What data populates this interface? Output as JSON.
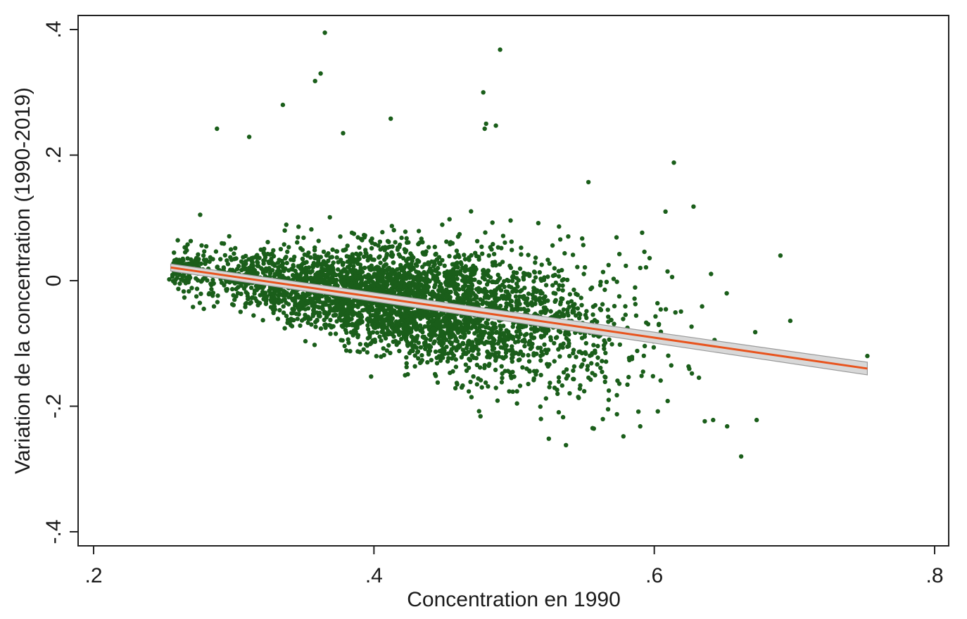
{
  "chart_data": {
    "type": "scatter",
    "xlabel": "Concentration en 1990",
    "ylabel": "Variation de la concentration (1990-2019)",
    "xlim": [
      0.2,
      0.8
    ],
    "ylim": [
      -0.4,
      0.4
    ],
    "x_ticks": [
      0.2,
      0.4,
      0.6,
      0.8
    ],
    "x_tick_labels": [
      ".2",
      ".4",
      ".6",
      ".8"
    ],
    "y_ticks": [
      -0.4,
      -0.2,
      0,
      0.2,
      0.4
    ],
    "y_tick_labels": [
      "-.4",
      "-.2",
      "0",
      ".2",
      ".4"
    ],
    "grid": false,
    "legend": "none",
    "colors": {
      "points": "#1a5e1a",
      "fit_line": "#e8541e",
      "ci_band": "#9a9a9a",
      "frame": "#222222"
    },
    "fit_line": {
      "x": [
        0.255,
        0.752
      ],
      "y": [
        0.021,
        -0.14
      ]
    },
    "bulk_cloud": {
      "n_points": 3800,
      "x_range": [
        0.255,
        0.66
      ],
      "fit_slope": -0.324,
      "fit_intercept": 0.104
    },
    "outliers": [
      {
        "x": 0.365,
        "y": 0.395
      },
      {
        "x": 0.49,
        "y": 0.368
      },
      {
        "x": 0.362,
        "y": 0.33
      },
      {
        "x": 0.358,
        "y": 0.318
      },
      {
        "x": 0.478,
        "y": 0.3
      },
      {
        "x": 0.335,
        "y": 0.28
      },
      {
        "x": 0.412,
        "y": 0.258
      },
      {
        "x": 0.48,
        "y": 0.25
      },
      {
        "x": 0.487,
        "y": 0.247
      },
      {
        "x": 0.288,
        "y": 0.242
      },
      {
        "x": 0.479,
        "y": 0.242
      },
      {
        "x": 0.311,
        "y": 0.229
      },
      {
        "x": 0.378,
        "y": 0.235
      },
      {
        "x": 0.614,
        "y": 0.188
      },
      {
        "x": 0.553,
        "y": 0.157
      },
      {
        "x": 0.628,
        "y": 0.118
      },
      {
        "x": 0.608,
        "y": 0.11
      },
      {
        "x": 0.69,
        "y": 0.04
      },
      {
        "x": 0.697,
        "y": -0.064
      },
      {
        "x": 0.672,
        "y": -0.082
      },
      {
        "x": 0.752,
        "y": -0.12
      },
      {
        "x": 0.733,
        "y": -0.133
      },
      {
        "x": 0.662,
        "y": -0.28
      },
      {
        "x": 0.673,
        "y": -0.222
      },
      {
        "x": 0.652,
        "y": -0.232
      },
      {
        "x": 0.537,
        "y": -0.262
      },
      {
        "x": 0.475,
        "y": -0.208
      },
      {
        "x": 0.476,
        "y": -0.216
      },
      {
        "x": 0.578,
        "y": -0.248
      },
      {
        "x": 0.59,
        "y": -0.232
      },
      {
        "x": 0.556,
        "y": -0.235
      },
      {
        "x": 0.636,
        "y": -0.224
      },
      {
        "x": 0.642,
        "y": -0.222
      },
      {
        "x": 0.254,
        "y": 0.002
      },
      {
        "x": 0.265,
        "y": 0.053
      },
      {
        "x": 0.276,
        "y": 0.105
      }
    ]
  }
}
